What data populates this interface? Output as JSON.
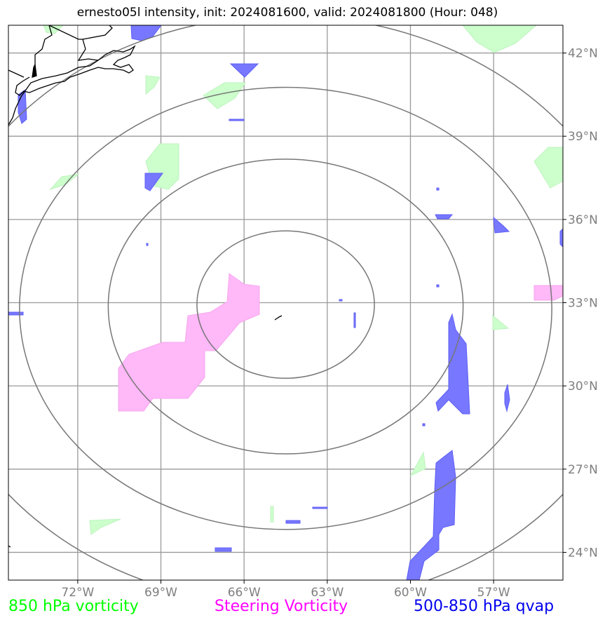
{
  "title": "ernesto05l intensity, init: 2024081600, valid: 2024081800 (Hour: 048)",
  "map": {
    "lon_range": [
      -74.5,
      -54.5
    ],
    "lat_range": [
      23.0,
      43.0
    ],
    "storm_center": {
      "lon": -64.5,
      "lat": 33.0
    },
    "range_ring_radii_deg": [
      3.2,
      6.4,
      9.6,
      12.8
    ],
    "colors": {
      "vorticity_850": "#ccffcc",
      "steering_vorticity": "#ffb3f5",
      "qvap": "#6666ff",
      "grid": "#9a9a9a",
      "ring": "#777777"
    }
  },
  "lon_ticks": [
    {
      "value": -72,
      "label": "72°W"
    },
    {
      "value": -69,
      "label": "69°W"
    },
    {
      "value": -66,
      "label": "66°W"
    },
    {
      "value": -63,
      "label": "63°W"
    },
    {
      "value": -60,
      "label": "60°W"
    },
    {
      "value": -57,
      "label": "57°W"
    }
  ],
  "lat_ticks": [
    {
      "value": 42,
      "label": "42°N"
    },
    {
      "value": 39,
      "label": "39°N"
    },
    {
      "value": 36,
      "label": "36°N"
    },
    {
      "value": 33,
      "label": "33°N"
    },
    {
      "value": 30,
      "label": "30°N"
    },
    {
      "value": 27,
      "label": "27°N"
    },
    {
      "value": 24,
      "label": "24°N"
    }
  ],
  "legend": {
    "vorticity": "850 hPa vorticity",
    "steering": "Steering Vorticity",
    "qvap": "500-850 hPa qvap"
  }
}
